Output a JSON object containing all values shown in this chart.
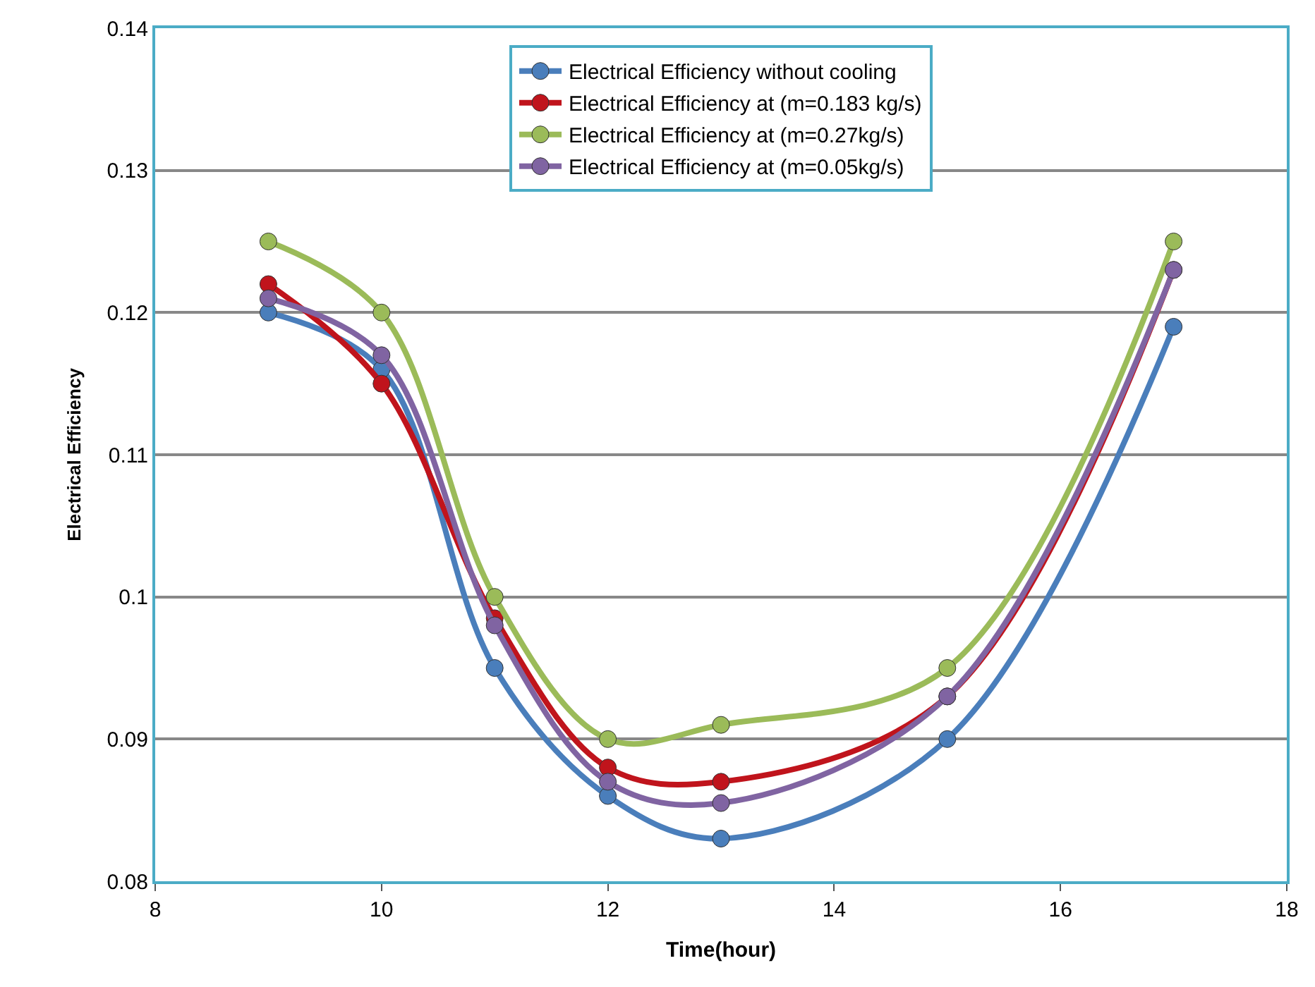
{
  "chart_data": {
    "type": "line",
    "xlabel": "Time(hour)",
    "ylabel": "Electrical Efficiency",
    "x": [
      9,
      10,
      11,
      12,
      13,
      15,
      17
    ],
    "series": [
      {
        "name": "Electrical Efficiency without cooling",
        "color": "#4a7ebb",
        "values": [
          0.12,
          0.116,
          0.095,
          0.086,
          0.083,
          0.09,
          0.119
        ]
      },
      {
        "name": "Electrical Efficiency at (m=0.183 kg/s)",
        "color": "#c0141c",
        "values": [
          0.122,
          0.115,
          0.0985,
          0.088,
          0.087,
          0.093,
          0.123
        ]
      },
      {
        "name": "Electrical Efficiency at (m=0.27kg/s)",
        "color": "#9bbb59",
        "values": [
          0.125,
          0.12,
          0.1,
          0.09,
          0.091,
          0.095,
          0.125
        ]
      },
      {
        "name": "Electrical Efficiency at (m=0.05kg/s)",
        "color": "#8064a2",
        "values": [
          0.121,
          0.117,
          0.098,
          0.087,
          0.0855,
          0.093,
          0.123
        ]
      }
    ],
    "xlim": [
      8,
      18
    ],
    "xticks": [
      8,
      10,
      12,
      14,
      16,
      18
    ],
    "ylim": [
      0.08,
      0.14
    ],
    "yticks": [
      0.08,
      0.09,
      0.1,
      0.11,
      0.12,
      0.13,
      0.14
    ],
    "grid": "y",
    "legend": "top",
    "marker": "circle",
    "line_style": "solid"
  }
}
